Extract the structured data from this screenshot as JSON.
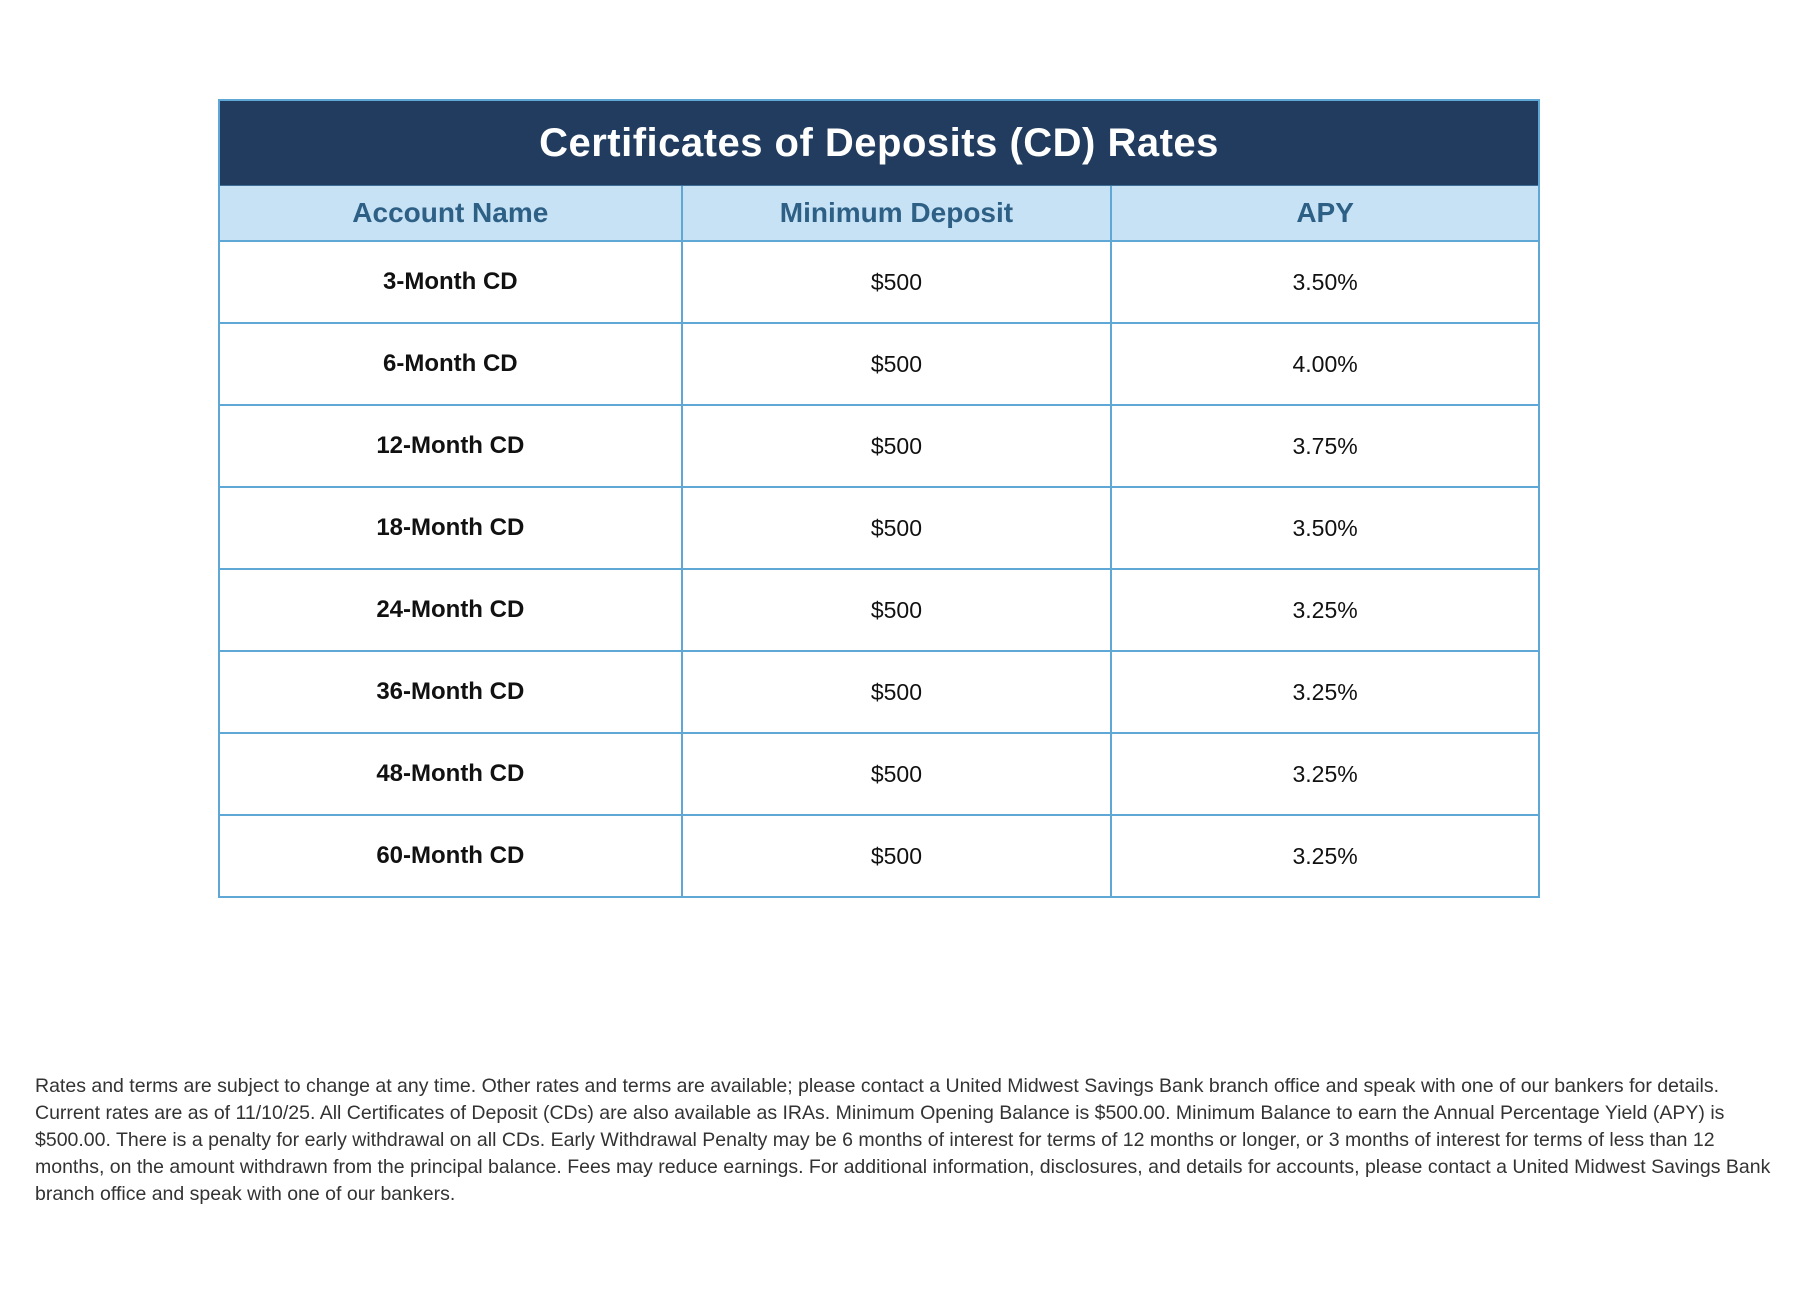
{
  "table": {
    "title": "Certificates of Deposits (CD) Rates",
    "columns": {
      "account": "Account Name",
      "min_deposit": "Minimum Deposit",
      "apy": "APY"
    },
    "rows": [
      {
        "account": "3-Month CD",
        "min_deposit": "$500",
        "apy": "3.50%"
      },
      {
        "account": "6-Month CD",
        "min_deposit": "$500",
        "apy": "4.00%"
      },
      {
        "account": "12-Month CD",
        "min_deposit": "$500",
        "apy": "3.75%"
      },
      {
        "account": "18-Month CD",
        "min_deposit": "$500",
        "apy": "3.50%"
      },
      {
        "account": "24-Month CD",
        "min_deposit": "$500",
        "apy": "3.25%"
      },
      {
        "account": "36-Month CD",
        "min_deposit": "$500",
        "apy": "3.25%"
      },
      {
        "account": "48-Month CD",
        "min_deposit": "$500",
        "apy": "3.25%"
      },
      {
        "account": "60-Month CD",
        "min_deposit": "$500",
        "apy": "3.25%"
      }
    ]
  },
  "disclaimer": "Rates and terms are subject to change at any time. Other rates and terms are available; please contact a United Midwest Savings Bank branch office and speak with one of our bankers for details. Current rates are as of 11/10/25. All Certificates of Deposit (CDs) are also available as IRAs. Minimum Opening Balance is $500.00. Minimum Balance to earn the Annual Percentage Yield (APY) is $500.00. There is a penalty for early withdrawal on all CDs. Early Withdrawal Penalty may be 6 months of interest for terms of 12 months or longer, or 3 months of interest for terms of less than 12 months, on the amount withdrawn from the principal balance. Fees may reduce earnings. For additional information, disclosures, and details for accounts, please contact a United Midwest Savings Bank branch office and speak with one of our bankers.",
  "colors": {
    "title_bar_bg": "#213C5E",
    "title_text": "#FFFFFF",
    "header_bg": "#C7E2F5",
    "header_text": "#2E6086",
    "grid_border": "#5FA8D6",
    "body_text": "#111111",
    "disclaimer_text": "#333333"
  },
  "chart_data": {
    "type": "table",
    "title": "Certificates of Deposits (CD) Rates",
    "columns": [
      "Account Name",
      "Minimum Deposit",
      "APY"
    ],
    "rows": [
      [
        "3-Month CD",
        "$500",
        "3.50%"
      ],
      [
        "6-Month CD",
        "$500",
        "4.00%"
      ],
      [
        "12-Month CD",
        "$500",
        "3.75%"
      ],
      [
        "18-Month CD",
        "$500",
        "3.50%"
      ],
      [
        "24-Month CD",
        "$500",
        "3.25%"
      ],
      [
        "36-Month CD",
        "$500",
        "3.25%"
      ],
      [
        "48-Month CD",
        "$500",
        "3.25%"
      ],
      [
        "60-Month CD",
        "$500",
        "3.25%"
      ]
    ]
  }
}
